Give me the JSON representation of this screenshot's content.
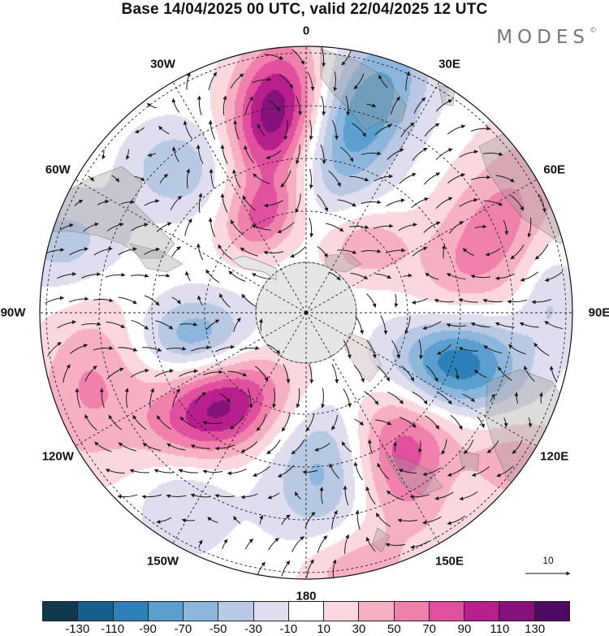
{
  "title": "Base 14/04/2025 00 UTC, valid 22/04/2025 12 UTC",
  "brand": "MODES",
  "brand_mark": "©",
  "map": {
    "projection": "south-polar-stereographic",
    "longitude_labels": [
      {
        "text": "0",
        "lon": 0
      },
      {
        "text": "30E",
        "lon": 30
      },
      {
        "text": "60E",
        "lon": 60
      },
      {
        "text": "90E",
        "lon": 90
      },
      {
        "text": "120E",
        "lon": 120
      },
      {
        "text": "150E",
        "lon": 150
      },
      {
        "text": "180",
        "lon": 180
      },
      {
        "text": "150W",
        "lon": -150
      },
      {
        "text": "120W",
        "lon": -120
      },
      {
        "text": "90W",
        "lon": -90
      },
      {
        "text": "60W",
        "lon": -60
      },
      {
        "text": "30W",
        "lon": -30
      }
    ],
    "reference_vector": "10",
    "colors": {
      "land": "#9a9a9a",
      "antarctica": "#e6e6e6",
      "grid": "#222222",
      "vector": "#1a1a1a"
    }
  },
  "colorbar": {
    "colors": [
      "#11384f",
      "#155f8c",
      "#2d80b8",
      "#5a9fce",
      "#8db6dc",
      "#b9c8e3",
      "#dedeef",
      "#ffffff",
      "#fbd8dd",
      "#f7b0c2",
      "#f081ac",
      "#e1509f",
      "#b71f8c",
      "#85117a",
      "#4f0b63"
    ],
    "ticks": [
      "-130",
      "-110",
      "-90",
      "-70",
      "-50",
      "-30",
      "-10",
      "10",
      "30",
      "50",
      "70",
      "90",
      "110",
      "130"
    ]
  },
  "anomalies": [
    {
      "lon": -9,
      "r": 250,
      "sign": 1,
      "amp": 125,
      "sx": 38,
      "sy": 62,
      "rot": 8
    },
    {
      "lon": 16,
      "r": 255,
      "sign": -1,
      "amp": 88,
      "sx": 42,
      "sy": 85,
      "rot": 28
    },
    {
      "lon": -42,
      "r": 240,
      "sign": -1,
      "amp": 48,
      "sx": 42,
      "sy": 38,
      "rot": 0
    },
    {
      "lon": -74,
      "r": 310,
      "sign": -1,
      "amp": 40,
      "sx": 50,
      "sy": 42,
      "rot": 0
    },
    {
      "lon": -24,
      "r": 130,
      "sign": 1,
      "amp": 72,
      "sx": 30,
      "sy": 38,
      "rot": 40
    },
    {
      "lon": 40,
      "r": 110,
      "sign": 1,
      "amp": 48,
      "sx": 38,
      "sy": 30,
      "rot": 0
    },
    {
      "lon": 68,
      "r": 240,
      "sign": 1,
      "amp": 62,
      "sx": 48,
      "sy": 110,
      "rot": 30
    },
    {
      "lon": 86,
      "r": 300,
      "sign": -1,
      "amp": 32,
      "sx": 25,
      "sy": 45,
      "rot": 0
    },
    {
      "lon": 109,
      "r": 187,
      "sign": -1,
      "amp": 128,
      "sx": 58,
      "sy": 45,
      "rot": 0
    },
    {
      "lon": 148,
      "r": 190,
      "sign": 1,
      "amp": 118,
      "sx": 58,
      "sy": 70,
      "rot": -30
    },
    {
      "lon": 167,
      "r": 175,
      "sign": -1,
      "amp": 100,
      "sx": 50,
      "sy": 70,
      "rot": 15
    },
    {
      "lon": -137,
      "r": 160,
      "sign": 1,
      "amp": 118,
      "sx": 62,
      "sy": 42,
      "rot": -25
    },
    {
      "lon": -102,
      "r": 140,
      "sign": -1,
      "amp": 68,
      "sx": 50,
      "sy": 35,
      "rot": 0
    },
    {
      "lon": -108,
      "r": 280,
      "sign": 1,
      "amp": 52,
      "sx": 50,
      "sy": 75,
      "rot": 10
    },
    {
      "lon": -146,
      "r": 270,
      "sign": -1,
      "amp": 32,
      "sx": 42,
      "sy": 50,
      "rot": 0
    },
    {
      "lon": 170,
      "r": 320,
      "sign": 1,
      "amp": 46,
      "sx": 48,
      "sy": 35,
      "rot": 0
    },
    {
      "lon": 126,
      "r": 315,
      "sign": 1,
      "amp": 42,
      "sx": 45,
      "sy": 38,
      "rot": 0
    },
    {
      "lon": 138,
      "r": 270,
      "sign": -1,
      "amp": 22,
      "sx": 40,
      "sy": 35,
      "rot": 0
    }
  ]
}
